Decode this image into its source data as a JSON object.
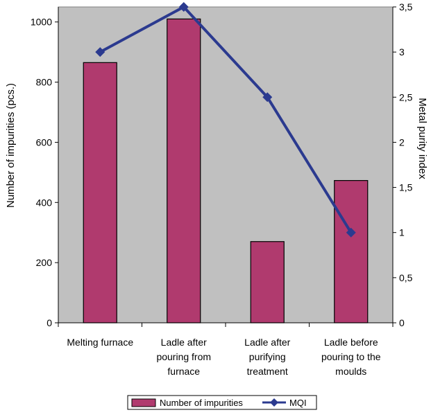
{
  "chart_data": {
    "type": "bar",
    "title": "",
    "categories": [
      [
        "Melting furnace"
      ],
      [
        "Ladle after",
        "pouring from",
        "furnace"
      ],
      [
        "Ladle after",
        "purifying",
        "treatment"
      ],
      [
        "Ladle before",
        "pouring to the",
        "moulds"
      ]
    ],
    "ylabel": "Number of impurities (pcs.)",
    "y2label": "Metal purity index",
    "ylim": [
      0,
      1050
    ],
    "y2lim": [
      0,
      3.5
    ],
    "yticks": [
      "0",
      "200",
      "400",
      "600",
      "800",
      "1000"
    ],
    "y2ticks": [
      "0",
      "0,5",
      "1",
      "1,5",
      "2",
      "2,5",
      "3",
      "3,5"
    ],
    "series": [
      {
        "name": "Number of impurities",
        "kind": "bar",
        "axis": "left",
        "values": [
          865,
          1010,
          270,
          473
        ],
        "color": "#b03a6e"
      },
      {
        "name": "MQI",
        "kind": "line",
        "axis": "right",
        "values": [
          3.0,
          3.5,
          2.5,
          1.0
        ],
        "color": "#2b3a8f"
      }
    ],
    "plot_background": "#c0c0c0",
    "grid": false,
    "legend_position": "bottom-center"
  }
}
